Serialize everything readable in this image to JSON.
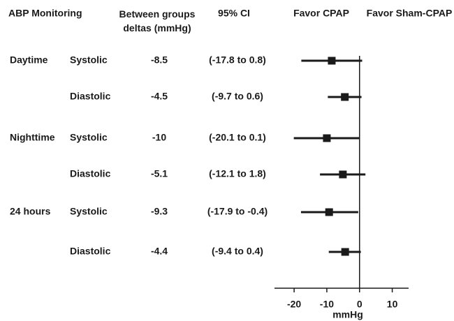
{
  "chart_data": {
    "type": "forest",
    "headers": [
      "ABP Monitoring",
      "Between groups deltas (mmHg)",
      "95% CI",
      "Favor CPAP",
      "Favor Sham-CPAP"
    ],
    "groups": [
      "Daytime",
      null,
      "Nighttime",
      null,
      "24 hours",
      null
    ],
    "categories": [
      "Systolic",
      "Diastolic",
      "Systolic",
      "Diastolic",
      "Systolic",
      "Diastolic"
    ],
    "values": [
      -8.5,
      -4.5,
      -10,
      -5.1,
      -9.3,
      -4.4
    ],
    "ci_low": [
      -17.8,
      -9.7,
      -20.1,
      -12.1,
      -17.9,
      -9.4
    ],
    "ci_high": [
      0.8,
      0.6,
      0.1,
      1.8,
      -0.4,
      0.4
    ],
    "ci_labels": [
      "(-17.8 to 0.8)",
      "(-9.7 to 0.6)",
      "(-20.1 to 0.1)",
      "(-12.1 to 1.8)",
      "(-17.9 to -0.4)",
      "(-9.4 to 0.4)"
    ],
    "xlabel": "mmHg",
    "xlim": [
      -26,
      15
    ],
    "xticks": [
      -20,
      -10,
      0,
      10
    ],
    "color": "#1a1a1a"
  }
}
